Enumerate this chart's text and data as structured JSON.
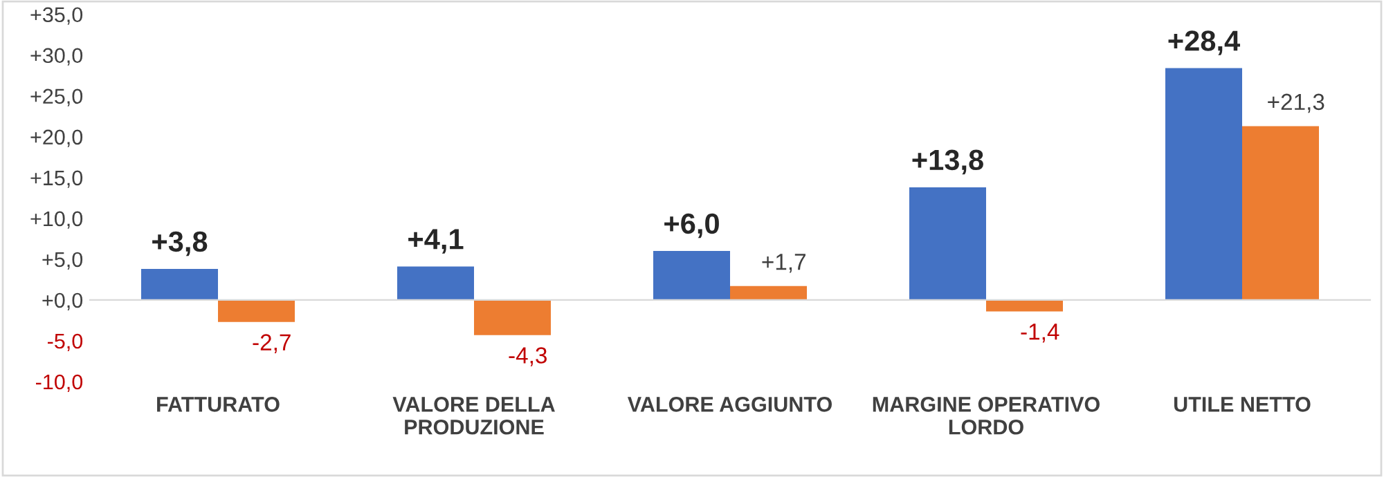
{
  "chart_data": {
    "type": "bar",
    "categories": [
      "FATTURATO",
      "VALORE DELLA\nPRODUZIONE",
      "VALORE AGGIUNTO",
      "MARGINE OPERATIVO\nLORDO",
      "UTILE NETTO"
    ],
    "series": [
      {
        "color": "#4472c4",
        "values": [
          3.8,
          4.1,
          6.0,
          13.8,
          28.4
        ],
        "value_labels": [
          "+3,8",
          "+4,1",
          "+6,0",
          "+13,8",
          "+28,4"
        ]
      },
      {
        "color": "#ed7d31",
        "values": [
          -2.7,
          -4.3,
          1.7,
          -1.4,
          21.3
        ],
        "value_labels": [
          "-2,7",
          "-4,3",
          "+1,7",
          "-1,4",
          "+21,3"
        ]
      }
    ],
    "ylim": [
      -10,
      35
    ],
    "yticks": [
      {
        "value": -10,
        "label": "-10,0"
      },
      {
        "value": -5,
        "label": "-5,0"
      },
      {
        "value": 0,
        "label": "+0,0"
      },
      {
        "value": 5,
        "label": "+5,0"
      },
      {
        "value": 10,
        "label": "+10,0"
      },
      {
        "value": 15,
        "label": "+15,0"
      },
      {
        "value": 20,
        "label": "+20,0"
      },
      {
        "value": 25,
        "label": "+25,0"
      },
      {
        "value": 30,
        "label": "+30,0"
      },
      {
        "value": 35,
        "label": "+35,0"
      }
    ],
    "legend": false
  }
}
